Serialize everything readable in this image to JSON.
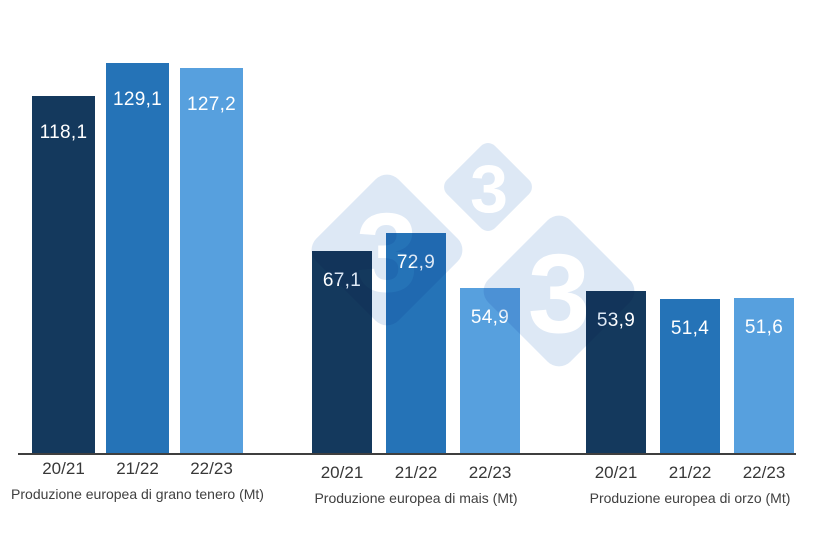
{
  "chart_data": {
    "type": "bar",
    "categories": [
      "20/21",
      "21/22",
      "22/23"
    ],
    "unit": "Mt",
    "decimal_separator": ",",
    "groups": [
      {
        "caption": "Produzione europea di grano tenero (Mt)",
        "values": [
          118.1,
          129.1,
          127.2
        ],
        "labels": [
          "118,1",
          "129,1",
          "127,2"
        ]
      },
      {
        "caption": "Produzione europea di mais (Mt)",
        "values": [
          67.1,
          72.9,
          54.9
        ],
        "labels": [
          "67,1",
          "72,9",
          "54,9"
        ]
      },
      {
        "caption": "Produzione europea di orzo (Mt)",
        "values": [
          53.9,
          51.4,
          51.6
        ],
        "labels": [
          "53,9",
          "51,4",
          "51,6"
        ]
      }
    ],
    "series_colors": [
      "#14395D",
      "#2573B7",
      "#57A0DE"
    ],
    "value_label_color": "#FFFFFF",
    "value_label_position": "inside-top",
    "ylim": [
      0,
      133
    ],
    "grid": false,
    "legend": "none",
    "axis_line_color": "#3F3F3F"
  },
  "watermark": {
    "logo": "333",
    "digits": [
      "3",
      "3",
      "3"
    ],
    "diamond_color": "#DDE8F5",
    "digit_color": "#FFFFFF"
  }
}
